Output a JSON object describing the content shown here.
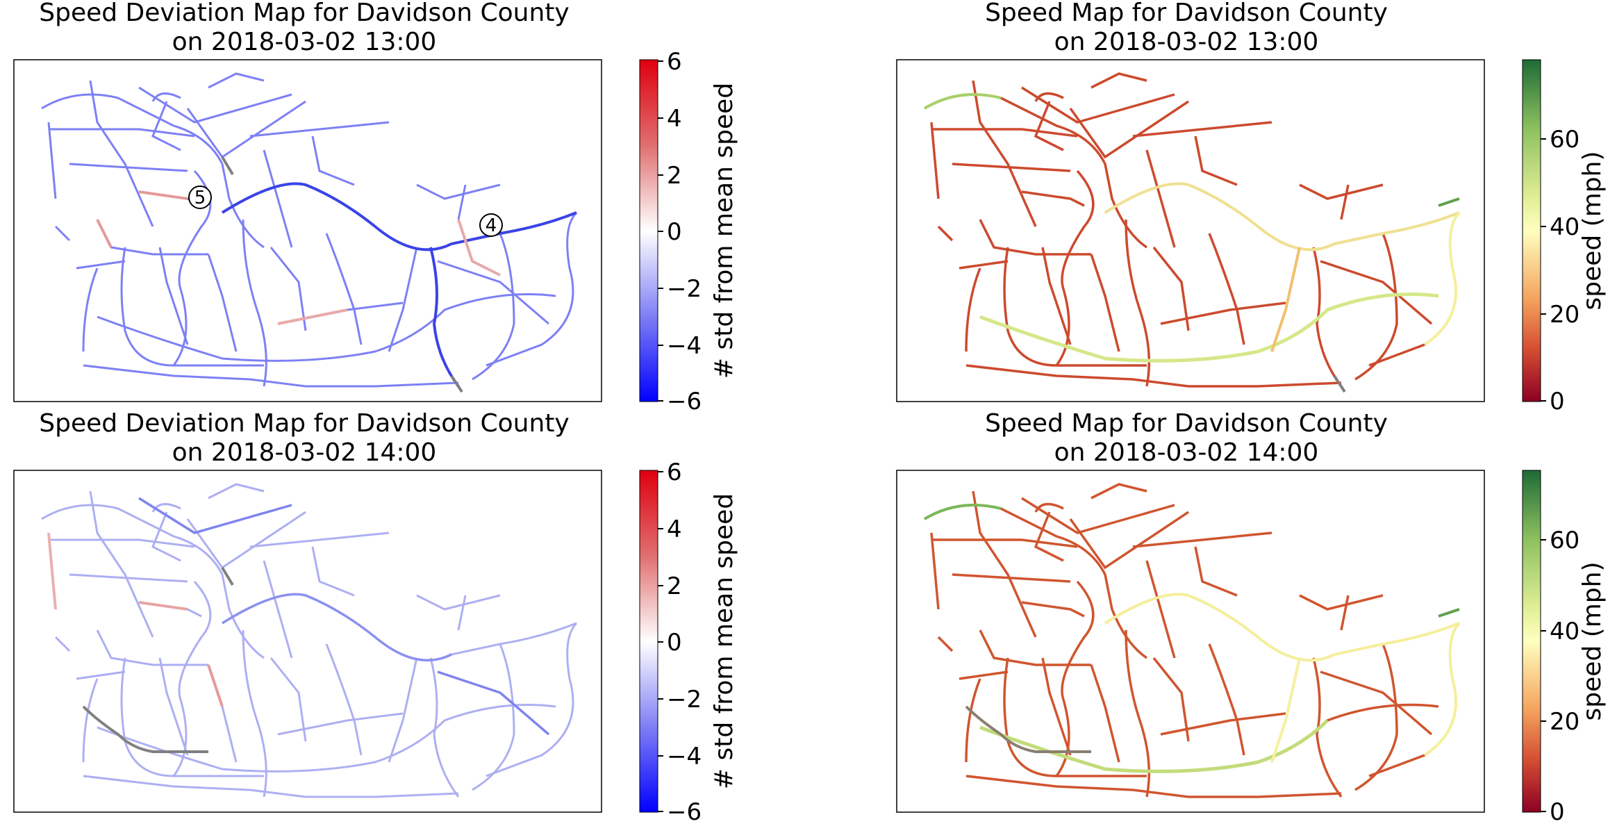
{
  "chart_data": [
    {
      "type": "map",
      "title_line1": "Speed Deviation Map for Davidson County",
      "title_line2": "on 2018-03-02 13:00",
      "colorbar": {
        "label": "# std from mean speed",
        "colormap": "bwr",
        "range": [
          -6,
          6
        ],
        "ticks": [
          "6",
          "4",
          "2",
          "0",
          "−2",
          "−4",
          "−6"
        ]
      },
      "annotations": [
        "5",
        "4"
      ],
      "road_tint": "blue"
    },
    {
      "type": "map",
      "title_line1": "Speed Map for Davidson County",
      "title_line2": "on 2018-03-02 13:00",
      "colorbar": {
        "label": "speed (mph)",
        "colormap": "RdYlGn",
        "range": [
          0,
          78
        ],
        "ticks": [
          "60",
          "40",
          "20",
          "0"
        ]
      },
      "road_tint": "red-orange"
    },
    {
      "type": "map",
      "title_line1": "Speed Deviation Map for Davidson County",
      "title_line2": "on 2018-03-02 14:00",
      "colorbar": {
        "label": "# std from mean speed",
        "colormap": "bwr",
        "range": [
          -6,
          6
        ],
        "ticks": [
          "6",
          "4",
          "2",
          "0",
          "−2",
          "−4",
          "−6"
        ]
      },
      "road_tint": "light-blue"
    },
    {
      "type": "map",
      "title_line1": "Speed Map for Davidson County",
      "title_line2": "on 2018-03-02 14:00",
      "colorbar": {
        "label": "speed (mph)",
        "colormap": "RdYlGn",
        "range": [
          0,
          75
        ],
        "ticks": [
          "60",
          "40",
          "20",
          "0"
        ]
      },
      "road_tint": "red-orange"
    }
  ],
  "colors": {
    "deviation_low": "#0000ff",
    "deviation_mid": "#ffffff",
    "deviation_high": "#ff0000",
    "speed_low": "#a50026",
    "speed_mid": "#ffffbf",
    "speed_high": "#1a6a35",
    "no_data": "#808080"
  }
}
